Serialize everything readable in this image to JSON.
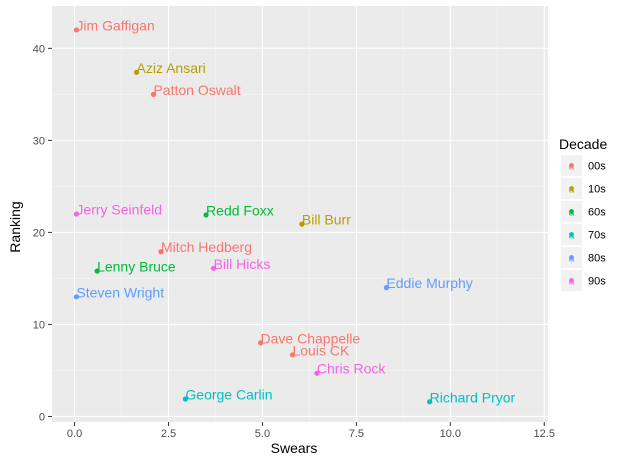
{
  "chart_data": {
    "type": "scatter",
    "xlabel": "Swears",
    "ylabel": "Ranking",
    "xlim": [
      -0.6,
      12.6
    ],
    "ylim": [
      -0.6,
      44.6
    ],
    "x_ticks": [
      0.0,
      2.5,
      5.0,
      7.5,
      10.0,
      12.5
    ],
    "x_tick_labels": [
      "0.0",
      "2.5",
      "5.0",
      "7.5",
      "10.0",
      "12.5"
    ],
    "y_ticks": [
      0,
      10,
      20,
      30,
      40
    ],
    "y_tick_labels": [
      "0",
      "10",
      "20",
      "30",
      "40"
    ],
    "grid": true,
    "legend": {
      "title": "Decade",
      "placement": "right",
      "entries": [
        "00s",
        "10s",
        "60s",
        "70s",
        "80s",
        "90s"
      ]
    },
    "colors": {
      "00s": "#F8766D",
      "10s": "#B79F00",
      "60s": "#00BA38",
      "70s": "#00BFC4",
      "80s": "#619CFF",
      "90s": "#F564E3"
    },
    "points": [
      {
        "label": "Jim Gaffigan",
        "x": 0.05,
        "y": 42.0,
        "decade": "00s"
      },
      {
        "label": "Aziz Ansari",
        "x": 1.65,
        "y": 37.4,
        "decade": "10s"
      },
      {
        "label": "Patton Oswalt",
        "x": 2.1,
        "y": 35.0,
        "decade": "00s"
      },
      {
        "label": "Jerry Seinfeld",
        "x": 0.05,
        "y": 22.0,
        "decade": "90s"
      },
      {
        "label": "Redd Foxx",
        "x": 3.5,
        "y": 21.9,
        "decade": "60s"
      },
      {
        "label": "Bill Burr",
        "x": 6.05,
        "y": 20.9,
        "decade": "10s"
      },
      {
        "label": "Mitch Hedberg",
        "x": 2.3,
        "y": 17.9,
        "decade": "00s"
      },
      {
        "label": "Bill Hicks",
        "x": 3.7,
        "y": 16.1,
        "decade": "90s"
      },
      {
        "label": "Lenny Bruce",
        "x": 0.6,
        "y": 15.8,
        "decade": "60s"
      },
      {
        "label": "Eddie Murphy",
        "x": 8.3,
        "y": 14.0,
        "decade": "80s"
      },
      {
        "label": "Steven Wright",
        "x": 0.05,
        "y": 13.0,
        "decade": "80s"
      },
      {
        "label": "Dave Chappelle",
        "x": 4.95,
        "y": 8.0,
        "decade": "00s"
      },
      {
        "label": "Louis CK",
        "x": 5.8,
        "y": 6.7,
        "decade": "00s"
      },
      {
        "label": "Chris Rock",
        "x": 6.45,
        "y": 4.7,
        "decade": "90s"
      },
      {
        "label": "George Carlin",
        "x": 2.95,
        "y": 1.9,
        "decade": "70s"
      },
      {
        "label": "Richard Pryor",
        "x": 9.45,
        "y": 1.6,
        "decade": "70s"
      }
    ]
  }
}
